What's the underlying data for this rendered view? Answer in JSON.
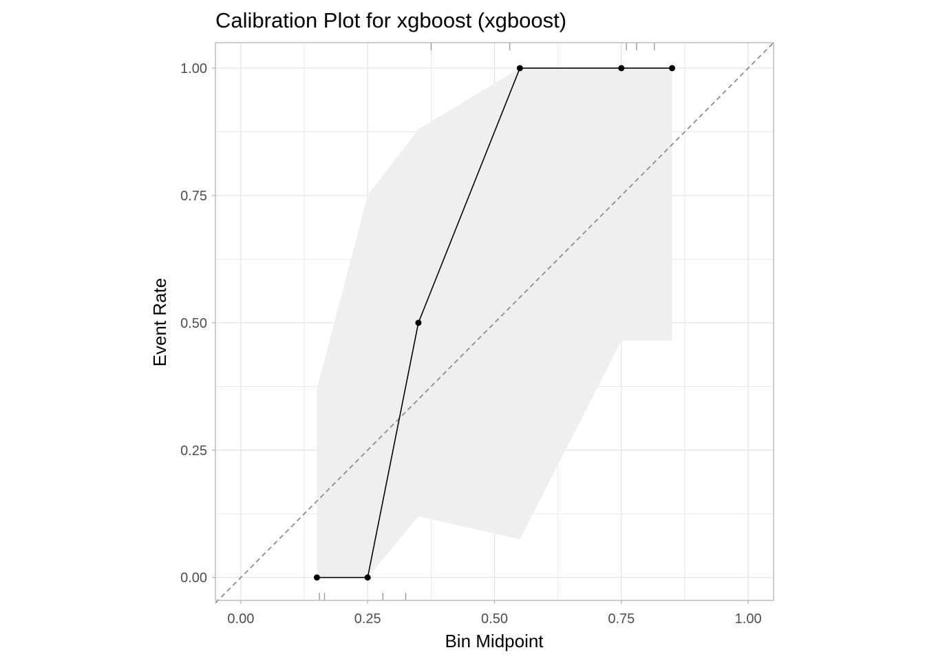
{
  "chart_data": {
    "type": "line",
    "title": "Calibration Plot for xgboost (xgboost)",
    "xlabel": "Bin Midpoint",
    "ylabel": "Event Rate",
    "xlim": [
      -0.05,
      1.05
    ],
    "ylim": [
      -0.045,
      1.05
    ],
    "x_ticks": [
      0.0,
      0.25,
      0.5,
      0.75,
      1.0
    ],
    "x_tick_labels": [
      "0.00",
      "0.25",
      "0.50",
      "0.75",
      "1.00"
    ],
    "y_ticks": [
      0.0,
      0.25,
      0.5,
      0.75,
      1.0
    ],
    "y_tick_labels": [
      "0.00",
      "0.25",
      "0.50",
      "0.75",
      "1.00"
    ],
    "grid": true,
    "series": [
      {
        "x": [
          0.15,
          0.25,
          0.35,
          0.55,
          0.75,
          0.85
        ],
        "y": [
          0.0,
          0.0,
          0.5,
          1.0,
          1.0,
          1.0
        ],
        "ci_upper": [
          0.37,
          0.75,
          0.88,
          1.0,
          1.0,
          1.0
        ],
        "ci_lower": [
          0.0,
          0.0,
          0.12,
          0.075,
          0.465,
          0.465
        ]
      }
    ],
    "reference_line": {
      "x": [
        -0.05,
        1.05
      ],
      "y": [
        -0.05,
        1.05
      ],
      "style": "dashed"
    },
    "rug_bottom": [
      0.155,
      0.165,
      0.28,
      0.325
    ],
    "rug_top": [
      0.375,
      0.53,
      0.76,
      0.78,
      0.815
    ],
    "colors": {
      "line": "#000000",
      "ribbon": "#efefef",
      "grid": "#e3e3e3",
      "border": "#b3b3b3",
      "reference": "#8c8c8c",
      "rug": "#9a9a9a"
    }
  }
}
